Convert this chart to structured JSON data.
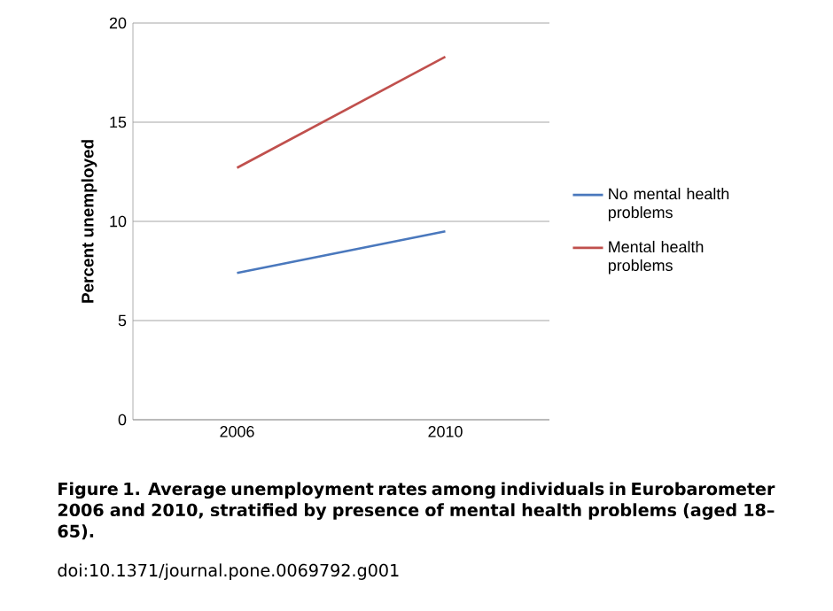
{
  "chart_data": {
    "type": "line",
    "ylabel": "Percent unemployed",
    "categories": [
      "2006",
      "2010"
    ],
    "series": [
      {
        "name": "No mental health problems",
        "color": "#4a78bd",
        "values": [
          7.4,
          9.5
        ]
      },
      {
        "name": "Mental health problems",
        "color": "#c0504d",
        "values": [
          12.7,
          18.3
        ]
      }
    ],
    "ylim": [
      0,
      20
    ],
    "yticks": [
      0,
      5,
      10,
      15,
      20
    ],
    "grid": "y",
    "legend": "right",
    "marker": "none",
    "line_style": "solid",
    "annotations": [
      "Figure 1. Average unemployment rates among individuals in Eurobarometer 2006 and 2010, stratified by presence of mental health problems (aged 18–65).",
      "doi:10.1371/journal.pone.0069792.g001"
    ]
  }
}
